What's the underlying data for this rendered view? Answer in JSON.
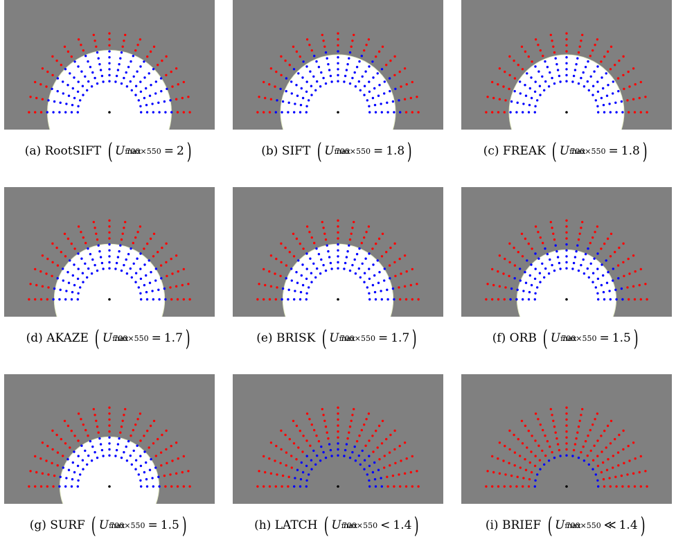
{
  "figure": {
    "background_color": "#808080",
    "mask_color": "#ffffff",
    "colors": {
      "detected": "#0000ff",
      "missed": "#ff0000",
      "center": "#000000"
    },
    "panels": [
      {
        "id": "a",
        "label": "(a)",
        "name": "RootSIFT",
        "u_var": "U",
        "u_sub": "max",
        "u_sup": "700×550",
        "relation": "=",
        "value": "2",
        "inner_radius_units": 5.8,
        "blue_min_level": 1,
        "blue_max_level": 6
      },
      {
        "id": "b",
        "label": "(b)",
        "name": "SIFT",
        "u_var": "U",
        "u_sub": "max",
        "u_sup": "700×550",
        "relation": "=",
        "value": "1.8",
        "inner_radius_units": 5.0,
        "blue_min_level": 1,
        "blue_max_level": 6
      },
      {
        "id": "c",
        "label": "(c)",
        "name": "FREAK",
        "u_var": "U",
        "u_sub": "max",
        "u_sup": "700×550",
        "relation": "=",
        "value": "1.8",
        "inner_radius_units": 5.0,
        "blue_min_level": 1,
        "blue_max_level": 5
      },
      {
        "id": "d",
        "label": "(d)",
        "name": "AKAZE",
        "u_var": "U",
        "u_sub": "max",
        "u_sup": "700×550",
        "relation": "=",
        "value": "1.7",
        "inner_radius_units": 4.6,
        "blue_min_level": 1,
        "blue_max_level": 5
      },
      {
        "id": "e",
        "label": "(e)",
        "name": "BRISK",
        "u_var": "U",
        "u_sub": "max",
        "u_sup": "700×550",
        "relation": "=",
        "value": "1.7",
        "inner_radius_units": 4.6,
        "blue_min_level": 1,
        "blue_max_level": 5
      },
      {
        "id": "f",
        "label": "(f)",
        "name": "ORB",
        "u_var": "U",
        "u_sub": "max",
        "u_sup": "700×550",
        "relation": "=",
        "value": "1.5",
        "inner_radius_units": 3.6,
        "blue_min_level": 1,
        "blue_max_level": 5
      },
      {
        "id": "g",
        "label": "(g)",
        "name": "SURF",
        "u_var": "U",
        "u_sub": "max",
        "u_sup": "700×550",
        "relation": "=",
        "value": "1.5",
        "inner_radius_units": 3.6,
        "blue_min_level": 1,
        "blue_max_level": 4
      },
      {
        "id": "h",
        "label": "(h)",
        "name": "LATCH",
        "u_var": "U",
        "u_sub": "max",
        "u_sup": "700×550",
        "relation": "<",
        "value": "1.4",
        "inner_radius_units": 0,
        "blue_min_level": 1,
        "blue_max_level": 3
      },
      {
        "id": "i",
        "label": "(i)",
        "name": "BRIEF",
        "u_var": "U",
        "u_sub": "max",
        "u_sup": "700×550",
        "relation": "≪",
        "value": "1.4",
        "inner_radius_units": 0,
        "blue_min_level": 1,
        "blue_max_level": 1
      }
    ]
  }
}
